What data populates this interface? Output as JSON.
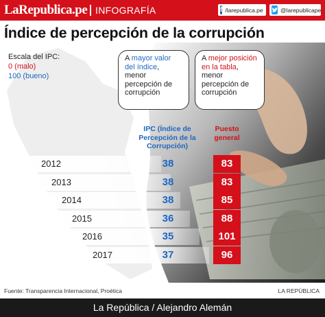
{
  "header": {
    "brand": "LaRepublica.pe",
    "section": "INFOGRAFÍA",
    "facebook": "/larepublica.pe",
    "twitter": "@larepublicape",
    "colors": {
      "brand_red": "#d4101b",
      "ipc_blue": "#1f67c0"
    },
    "icons": [
      "facebook-icon",
      "twitter-icon"
    ]
  },
  "chart_data": {
    "type": "table",
    "title": "Índice de percepción de la corrupción",
    "legend": {
      "title": "Escala del IPC:",
      "bad": "0 (malo)",
      "good": "100 (bueno)"
    },
    "notes": {
      "ipc": [
        "A ",
        "mayor valor del índice",
        ", menor percepción de corrupción"
      ],
      "rank": [
        "A ",
        "mejor posición en la tabla",
        ", menor percepción de corrupción"
      ]
    },
    "columns": [
      "IPC (Índice de Percepción de la Corrupción)",
      "Puesto general"
    ],
    "years": [
      "2012",
      "2013",
      "2014",
      "2015",
      "2016",
      "2017"
    ],
    "ipc": [
      38,
      38,
      38,
      36,
      35,
      37
    ],
    "rank": [
      83,
      83,
      85,
      88,
      101,
      96
    ]
  },
  "source": "Fuente: Transparencia Internacional, Proética",
  "publisher": "LA REPÚBLICA",
  "footer": "La República / Alejandro Alemán"
}
